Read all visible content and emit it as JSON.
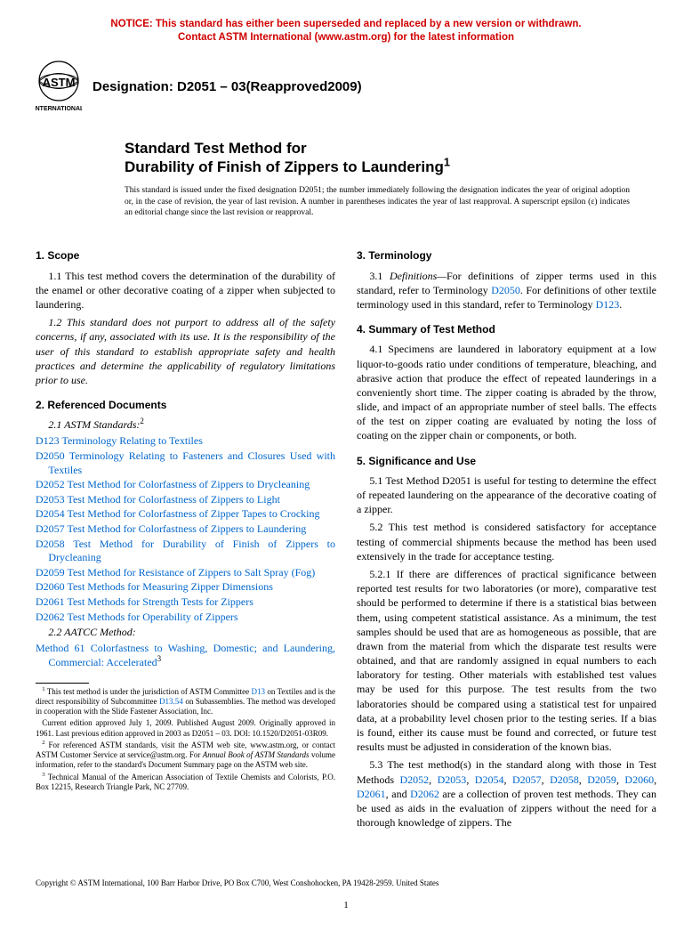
{
  "notice": {
    "line1": "NOTICE: This standard has either been superseded and replaced by a new version or withdrawn.",
    "line2": "Contact ASTM International (www.astm.org) for the latest information"
  },
  "colors": {
    "notice": "#d00000",
    "link": "#0066cc",
    "text": "#000000",
    "background": "#ffffff"
  },
  "designation": "Designation: D2051 – 03(Reapproved2009)",
  "title": {
    "line1": "Standard Test Method for",
    "line2": "Durability of Finish of Zippers to Laundering"
  },
  "issuance": "This standard is issued under the fixed designation D2051; the number immediately following the designation indicates the year of original adoption or, in the case of revision, the year of last revision. A number in parentheses indicates the year of last reapproval. A superscript epsilon (ε) indicates an editorial change since the last revision or reapproval.",
  "sections": {
    "scope": {
      "head": "1. Scope",
      "p1": "1.1 This test method covers the determination of the durability of the enamel or other decorative coating of a zipper when subjected to laundering.",
      "p2": "1.2 This standard does not purport to address all of the safety concerns, if any, associated with its use. It is the responsibility of the user of this standard to establish appropriate safety and health practices and determine the applicability of regulatory limitations prior to use."
    },
    "refs": {
      "head": "2. Referenced Documents",
      "sub1": "2.1 ASTM Standards:",
      "items1": [
        {
          "code": "D123",
          "desc": "Terminology Relating to Textiles"
        },
        {
          "code": "D2050",
          "desc": "Terminology Relating to Fasteners and Closures Used with Textiles"
        },
        {
          "code": "D2052",
          "desc": "Test Method for Colorfastness of Zippers to Drycleaning"
        },
        {
          "code": "D2053",
          "desc": "Test Method for Colorfastness of Zippers to Light"
        },
        {
          "code": "D2054",
          "desc": "Test Method for Colorfastness of Zipper Tapes to Crocking"
        },
        {
          "code": "D2057",
          "desc": "Test Method for Colorfastness of Zippers to Laundering"
        },
        {
          "code": "D2058",
          "desc": "Test Method for Durability of Finish of Zippers to Drycleaning"
        },
        {
          "code": "D2059",
          "desc": "Test Method for Resistance of Zippers to Salt Spray (Fog)"
        },
        {
          "code": "D2060",
          "desc": "Test Methods for Measuring Zipper Dimensions"
        },
        {
          "code": "D2061",
          "desc": "Test Methods for Strength Tests for Zippers"
        },
        {
          "code": "D2062",
          "desc": "Test Methods for Operability of Zippers"
        }
      ],
      "sub2": "2.2 AATCC Method:",
      "items2": [
        {
          "code": "Method 61",
          "desc": "Colorfastness to Washing, Domestic; and Laundering, Commercial: Accelerated"
        }
      ]
    },
    "terminology": {
      "head": "3. Terminology",
      "p1_a": "3.1 ",
      "p1_b": "Definitions—",
      "p1_c": "For definitions of zipper terms used in this standard, refer to Terminology ",
      "p1_d": ". For definitions of other textile terminology used in this standard, refer to Terminology ",
      "link1": "D2050",
      "link2": "D123"
    },
    "summary": {
      "head": "4. Summary of Test Method",
      "p1": "4.1 Specimens are laundered in laboratory equipment at a low liquor-to-goods ratio under conditions of temperature, bleaching, and abrasive action that produce the effect of repeated launderings in a conveniently short time. The zipper coating is abraded by the throw, slide, and impact of an appropriate number of steel balls. The effects of the test on zipper coating are evaluated by noting the loss of coating on the zipper chain or components, or both."
    },
    "significance": {
      "head": "5. Significance and Use",
      "p1": "5.1 Test Method D2051 is useful for testing to determine the effect of repeated laundering on the appearance of the decorative coating of a zipper.",
      "p2": "5.2 This test method is considered satisfactory for acceptance testing of commercial shipments because the method has been used extensively in the trade for acceptance testing.",
      "p3": "5.2.1 If there are differences of practical significance between reported test results for two laboratories (or more), comparative test should be performed to determine if there is a statistical bias between them, using competent statistical assistance. As a minimum, the test samples should be used that are as homogeneous as possible, that are drawn from the material from which the disparate test results were obtained, and that are randomly assigned in equal numbers to each laboratory for testing. Other materials with established test values may be used for this purpose. The test results from the two laboratories should be compared using a statistical test for unpaired data, at a probability level chosen prior to the testing series. If a bias is found, either its cause must be found and corrected, or future test results must be adjusted in consideration of the known bias.",
      "p4_a": "5.3 The test method(s) in the standard along with those in Test Methods ",
      "p4_links": [
        "D2052",
        "D2053",
        "D2054",
        "D2057",
        "D2058",
        "D2059",
        "D2060",
        "D2061",
        "D2062"
      ],
      "p4_b": " are a collection of proven test methods. They can be used as aids in the evaluation of zippers without the need for a thorough knowledge of zippers. The"
    }
  },
  "footnotes": {
    "f1_a": "This test method is under the jurisdiction of ASTM Committee ",
    "f1_link1": "D13",
    "f1_b": " on Textiles and is the direct responsibility of Subcommittee ",
    "f1_link2": "D13.54",
    "f1_c": " on Subassemblies. The method was developed in cooperation with the Slide Fastener Association, Inc.",
    "f1_d": "Current edition approved July 1, 2009. Published August 2009. Originally approved in 1961. Last previous edition approved in 2003 as D2051 – 03. DOI: 10.1520/D2051-03R09.",
    "f2_a": "For referenced ASTM standards, visit the ASTM web site, www.astm.org, or contact ASTM Customer Service at service@astm.org. For ",
    "f2_b": "Annual Book of ASTM Standards",
    "f2_c": " volume information, refer to the standard's Document Summary page on the ASTM web site.",
    "f3": "Technical Manual of the American Association of Textile Chemists and Colorists, P.O. Box 12215, Research Triangle Park, NC 27709."
  },
  "footer": "Copyright © ASTM International, 100 Barr Harbor Drive, PO Box C700, West Conshohocken, PA 19428-2959. United States",
  "pagenum": "1"
}
